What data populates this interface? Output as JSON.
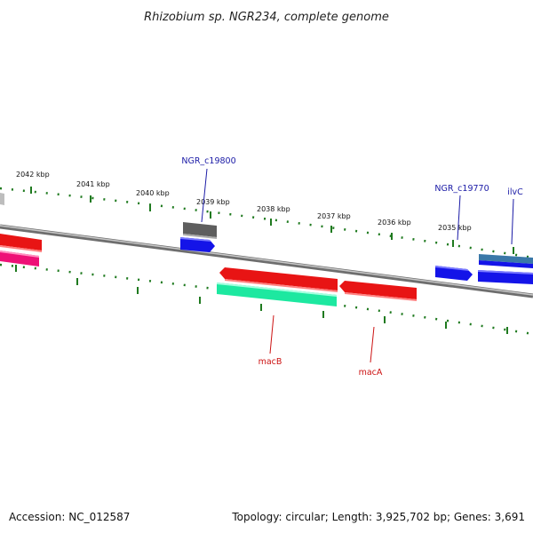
{
  "title": "Rhizobium sp. NGR234, complete genome",
  "footer": {
    "accession": "Accession: NC_012587",
    "topology": "Topology: circular; Length: 3,925,702 bp; Genes: 3,691"
  },
  "ticks": [
    {
      "label": "2042 kbp"
    },
    {
      "label": "2041 kbp"
    },
    {
      "label": "2040 kbp"
    },
    {
      "label": "2039 kbp"
    },
    {
      "label": "2038 kbp"
    },
    {
      "label": "2037 kbp"
    },
    {
      "label": "2036 kbp"
    },
    {
      "label": "2035 kbp"
    }
  ],
  "gene_labels": [
    {
      "text": "NGR_c19800",
      "color": "#1a1aa6"
    },
    {
      "text": "NGR_c19770",
      "color": "#1a1aa6"
    },
    {
      "text": "ilvC",
      "color": "#1a1aa6"
    },
    {
      "text": "macB",
      "color": "#cc1111"
    },
    {
      "text": "macA",
      "color": "#cc1111"
    }
  ],
  "colors": {
    "backbone": "#8c8c8c",
    "tick": "#1f7a1f",
    "forward_gene": "#1a1aee",
    "reverse_gene": "#ee1111",
    "grey_gene": "#666666",
    "teal_gene": "#22e6a0",
    "magenta_gene": "#ee1177",
    "steel_gene": "#3a78a8"
  }
}
